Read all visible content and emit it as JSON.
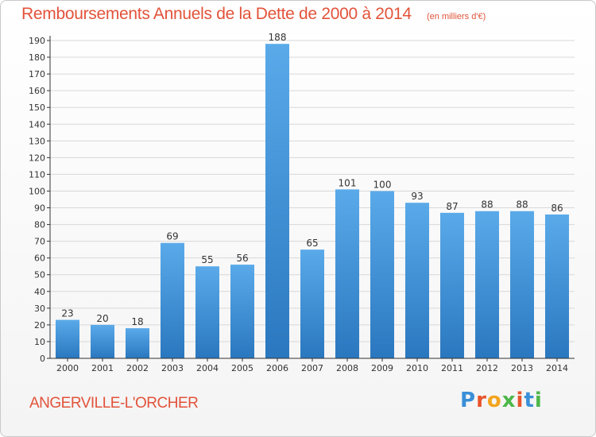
{
  "header": {
    "title": "Remboursements Annuels de la Dette de 2000 à 2014",
    "unit": "(en milliers d'€)"
  },
  "footer": {
    "city": "ANGERVILLE-L'ORCHER",
    "logo": "Proxiti",
    "logo_colors": [
      "#3a8fd8",
      "#e8542c",
      "#f3a51e",
      "#4db748",
      "#e8542c",
      "#3a8fd8",
      "#4db748"
    ]
  },
  "colors": {
    "bar_top": "#5aaaea",
    "bar_bottom": "#2a77bf",
    "grid": "#d8d8d8",
    "axis": "#333333",
    "label": "#333333",
    "accent": "#e2533a"
  },
  "chart_data": {
    "type": "bar",
    "title": "Remboursements Annuels de la Dette de 2000 à 2014",
    "categories": [
      "2000",
      "2001",
      "2002",
      "2003",
      "2004",
      "2005",
      "2006",
      "2007",
      "2008",
      "2009",
      "2010",
      "2011",
      "2012",
      "2013",
      "2014"
    ],
    "values": [
      23,
      20,
      18,
      69,
      55,
      56,
      188,
      65,
      101,
      100,
      93,
      87,
      88,
      88,
      86
    ],
    "ylim": [
      0,
      190
    ],
    "yticks": [
      0,
      10,
      20,
      30,
      40,
      50,
      60,
      70,
      80,
      90,
      100,
      110,
      120,
      130,
      140,
      150,
      160,
      170,
      180,
      190
    ],
    "grid": true
  }
}
